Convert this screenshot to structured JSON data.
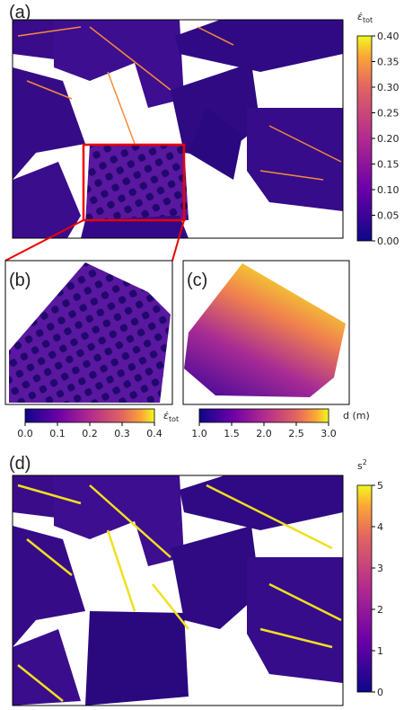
{
  "chart_data": [
    {
      "type": "heatmap",
      "panel_label": "(a)",
      "colorbar": {
        "cmap": "plasma",
        "orientation": "vertical",
        "label_symbol": "ε̇",
        "label_subscript": "tot",
        "lim": [
          0,
          0.4
        ],
        "ticks": [
          {
            "value": 0,
            "label": "0.00"
          },
          {
            "value": 0.05,
            "label": "0.05"
          },
          {
            "value": 0.1,
            "label": "0.10"
          },
          {
            "value": 0.15,
            "label": "0.15"
          },
          {
            "value": 0.2,
            "label": "0.20"
          },
          {
            "value": 0.25,
            "label": "0.25"
          },
          {
            "value": 0.3,
            "label": "0.30"
          },
          {
            "value": 0.35,
            "label": "0.35"
          },
          {
            "value": 0.4,
            "label": "0.40"
          }
        ]
      }
    },
    {
      "type": "heatmap",
      "panel_label": "(b)",
      "colorbar": {
        "cmap": "plasma",
        "orientation": "horizontal",
        "label_symbol": "ε̇",
        "label_subscript": "tot",
        "lim": [
          0,
          0.4
        ],
        "ticks": [
          {
            "value": 0,
            "label": "0.0"
          },
          0.1,
          0.2,
          0.3,
          0.4
        ]
      }
    },
    {
      "type": "heatmap",
      "panel_label": "(c)",
      "colorbar": {
        "cmap": "plasma",
        "orientation": "horizontal",
        "label_text": "d (m)",
        "lim": [
          1,
          3
        ],
        "ticks": [
          {
            "value": 1,
            "label": "1.0"
          },
          1.5,
          {
            "value": 2,
            "label": "2.0"
          },
          2.5,
          {
            "value": 3,
            "label": "3.0"
          }
        ]
      }
    },
    {
      "type": "heatmap",
      "panel_label": "(d)",
      "colorbar": {
        "cmap": "plasma",
        "orientation": "vertical",
        "label_symbol": "s",
        "label_superscript": "2",
        "lim": [
          0,
          5
        ],
        "ticks": [
          0,
          1,
          2,
          3,
          4,
          5
        ]
      }
    }
  ]
}
